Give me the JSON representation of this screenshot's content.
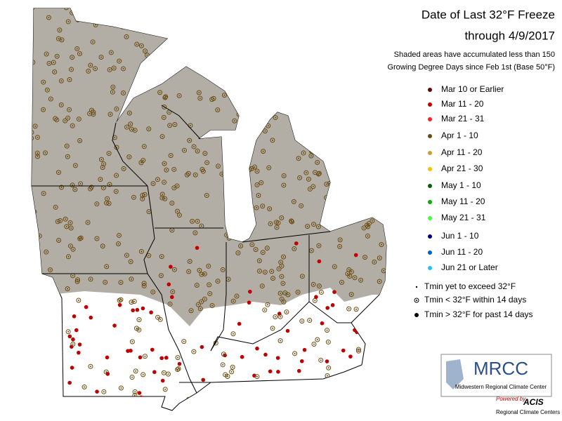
{
  "header": {
    "title": "Date of Last 32°F Freeze",
    "subtitle": "through 4/9/2017",
    "note": [
      "Shaded areas have accumulated less than 150",
      "Growing Degree Days since Feb 1st (Base 50°F)"
    ]
  },
  "legend": {
    "items": [
      {
        "label": "Mar 10 or Earlier",
        "color": "#6b0000"
      },
      {
        "label": "Mar 11 - 20",
        "color": "#c00000"
      },
      {
        "label": "Mar 21 - 31",
        "color": "#ff2020"
      },
      {
        "label": "Apr 1 - 10",
        "color": "#6b4a10"
      },
      {
        "label": "Apr 11 - 20",
        "color": "#c8a030"
      },
      {
        "label": "Apr 21 - 30",
        "color": "#ffc000"
      },
      {
        "label": "May 1 - 10",
        "color": "#006000"
      },
      {
        "label": "May 11 - 20",
        "color": "#00b000"
      },
      {
        "label": "May 21 - 31",
        "color": "#40ff40"
      },
      {
        "label": "Jun 1 - 10",
        "color": "#000080"
      },
      {
        "label": "Jun 11 - 20",
        "color": "#0060c0"
      },
      {
        "label": "Jun 21 or Later",
        "color": "#20c0ff"
      }
    ]
  },
  "symbols": [
    {
      "label": "Tmin yet to exceed 32°F",
      "symbol": "small-dot"
    },
    {
      "label": "Tmin < 32°F within 14 days",
      "symbol": "ring"
    },
    {
      "label": "Tmin > 32°F for past 14 days",
      "symbol": "dot"
    }
  ],
  "logo": {
    "name": "MRCC",
    "full_name": "Midwestern Regional Climate Center",
    "powered_by": "Powered by",
    "acis": "ACIS",
    "acis_sub": "Regional Climate Centers"
  }
}
